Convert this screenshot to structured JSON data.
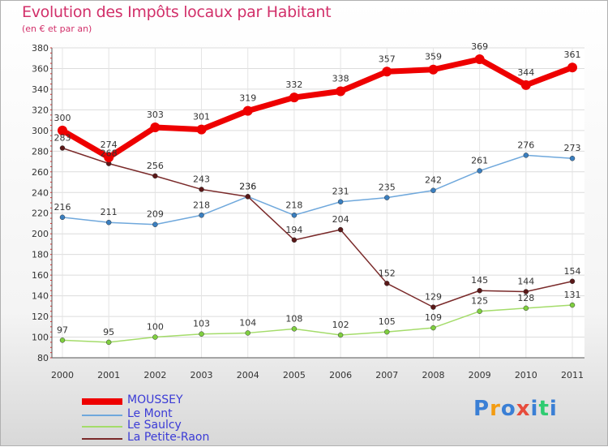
{
  "chart_data": {
    "type": "line",
    "title": "Evolution des Impôts locaux par Habitant",
    "subtitle": "(en € et par an)",
    "x": [
      "2000",
      "2001",
      "2002",
      "2003",
      "2004",
      "2005",
      "2006",
      "2007",
      "2008",
      "2009",
      "2010",
      "2011"
    ],
    "ylim": [
      80,
      380
    ],
    "yticks": [
      80,
      100,
      120,
      140,
      160,
      180,
      200,
      220,
      240,
      260,
      280,
      300,
      320,
      340,
      360,
      380
    ],
    "grid": true,
    "legend_position": "bottom-left",
    "series": [
      {
        "name": "MOUSSEY",
        "color": "#ee0000",
        "values": [
          300,
          274,
          303,
          301,
          319,
          332,
          338,
          357,
          359,
          369,
          344,
          361
        ]
      },
      {
        "name": "Le Mont",
        "color": "#6fa8dc",
        "values": [
          216,
          211,
          209,
          218,
          236,
          218,
          231,
          235,
          242,
          261,
          276,
          273
        ]
      },
      {
        "name": "Le Saulcy",
        "color": "#a4dc6a",
        "values": [
          97,
          95,
          100,
          103,
          104,
          108,
          102,
          105,
          109,
          125,
          128,
          131
        ]
      },
      {
        "name": "La Petite-Raon",
        "color": "#7a2a2a",
        "values": [
          283,
          268,
          256,
          243,
          236,
          194,
          204,
          152,
          129,
          145,
          144,
          154
        ]
      }
    ]
  },
  "logo": {
    "letters": [
      "P",
      "r",
      "o",
      "x",
      "i",
      "t",
      "i"
    ],
    "colors": [
      "#3a7fd5",
      "#f39c12",
      "#3a7fd5",
      "#e74c3c",
      "#3a7fd5",
      "#2ecc71",
      "#3a7fd5"
    ]
  }
}
